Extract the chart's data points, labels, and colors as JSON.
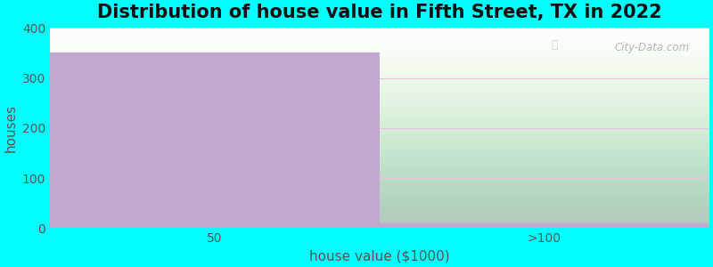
{
  "title": "Distribution of house value in Fifth Street, TX in 2022",
  "xlabel": "house value ($1000)",
  "ylabel": "houses",
  "categories": [
    "50",
    ">100"
  ],
  "values": [
    350,
    10
  ],
  "bar_color": "#C0A8D0",
  "ylim": [
    0,
    400
  ],
  "yticks": [
    0,
    100,
    200,
    300,
    400
  ],
  "background_color": "#00FFFF",
  "grid_color": "#E8C0E8",
  "title_fontsize": 15,
  "axis_label_fontsize": 11,
  "tick_fontsize": 10,
  "watermark_text": "City-Data.com"
}
